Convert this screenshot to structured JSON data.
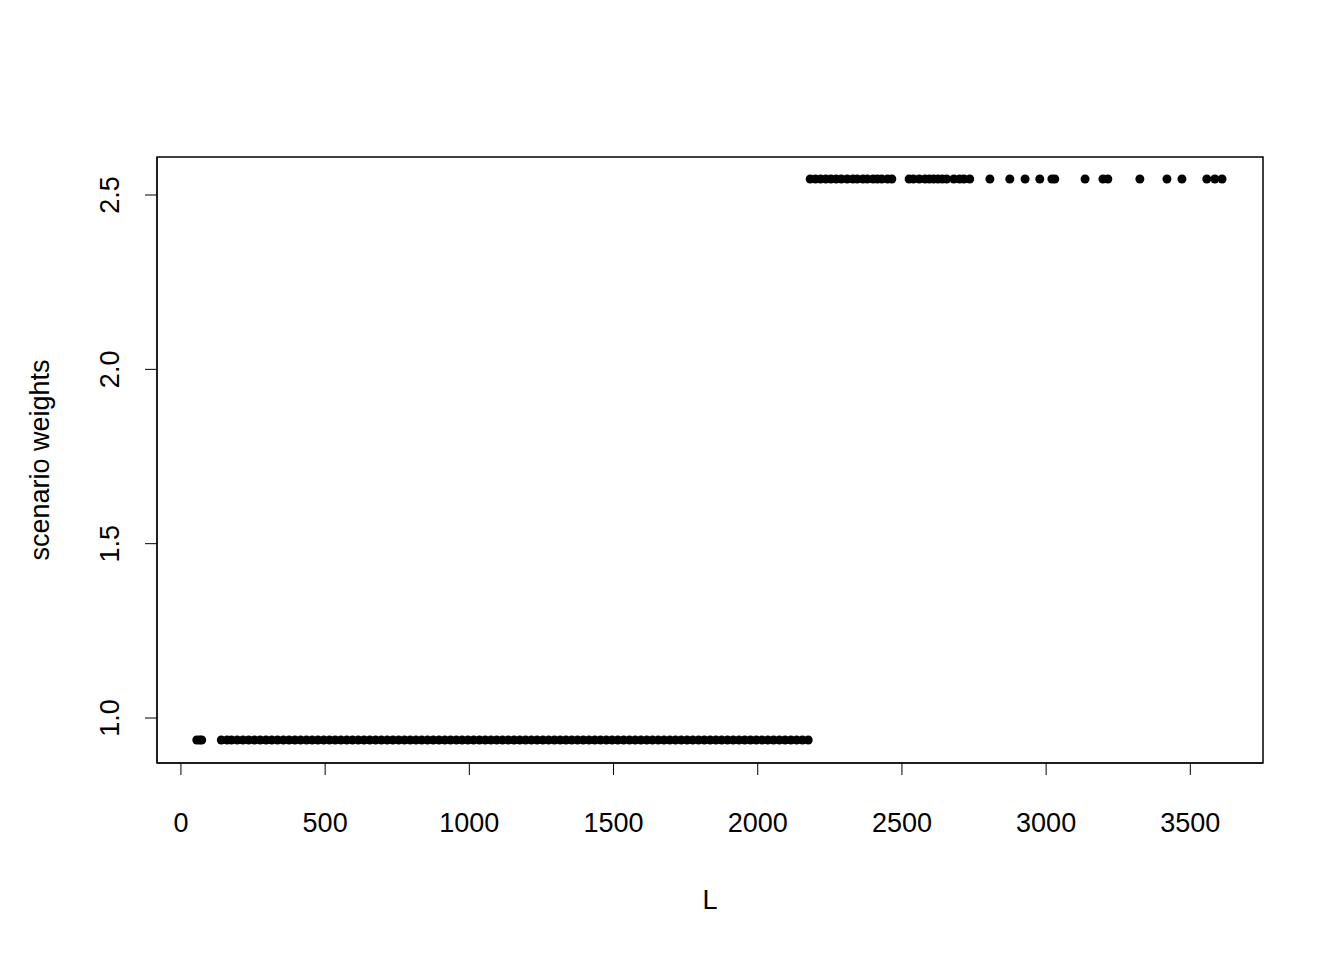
{
  "chart_data": {
    "type": "scatter",
    "xlabel": "L",
    "ylabel": "scenario weights",
    "color": "#000000",
    "marker": "circle",
    "x": [
      55,
      65,
      72,
      140,
      160,
      175,
      195,
      215,
      235,
      255,
      275,
      295,
      315,
      335,
      355,
      375,
      395,
      415,
      435,
      455,
      475,
      495,
      515,
      535,
      555,
      575,
      595,
      615,
      635,
      655,
      675,
      695,
      715,
      735,
      755,
      775,
      795,
      815,
      835,
      855,
      875,
      895,
      915,
      935,
      955,
      975,
      995,
      1015,
      1035,
      1055,
      1075,
      1095,
      1115,
      1135,
      1155,
      1175,
      1195,
      1215,
      1235,
      1255,
      1275,
      1295,
      1315,
      1335,
      1355,
      1375,
      1395,
      1415,
      1435,
      1455,
      1475,
      1495,
      1515,
      1535,
      1555,
      1575,
      1595,
      1615,
      1635,
      1655,
      1675,
      1695,
      1715,
      1735,
      1755,
      1775,
      1795,
      1815,
      1835,
      1855,
      1875,
      1895,
      1915,
      1935,
      1955,
      1975,
      1995,
      2015,
      2035,
      2055,
      2075,
      2095,
      2115,
      2135,
      2155,
      2175,
      2182,
      2200,
      2218,
      2236,
      2254,
      2272,
      2290,
      2310,
      2330,
      2345,
      2365,
      2380,
      2400,
      2415,
      2430,
      2450,
      2465,
      2525,
      2540,
      2560,
      2580,
      2595,
      2610,
      2625,
      2640,
      2655,
      2680,
      2700,
      2715,
      2735,
      2805,
      2874,
      2927,
      2978,
      3020,
      3030,
      3135,
      3197,
      3214,
      3325,
      3419,
      3471,
      3557,
      3585,
      3610
    ],
    "values": [
      0.937,
      0.937,
      0.937,
      0.937,
      0.937,
      0.937,
      0.937,
      0.937,
      0.937,
      0.937,
      0.937,
      0.937,
      0.937,
      0.937,
      0.937,
      0.937,
      0.937,
      0.937,
      0.937,
      0.937,
      0.937,
      0.937,
      0.937,
      0.937,
      0.937,
      0.937,
      0.937,
      0.937,
      0.937,
      0.937,
      0.937,
      0.937,
      0.937,
      0.937,
      0.937,
      0.937,
      0.937,
      0.937,
      0.937,
      0.937,
      0.937,
      0.937,
      0.937,
      0.937,
      0.937,
      0.937,
      0.937,
      0.937,
      0.937,
      0.937,
      0.937,
      0.937,
      0.937,
      0.937,
      0.937,
      0.937,
      0.937,
      0.937,
      0.937,
      0.937,
      0.937,
      0.937,
      0.937,
      0.937,
      0.937,
      0.937,
      0.937,
      0.937,
      0.937,
      0.937,
      0.937,
      0.937,
      0.937,
      0.937,
      0.937,
      0.937,
      0.937,
      0.937,
      0.937,
      0.937,
      0.937,
      0.937,
      0.937,
      0.937,
      0.937,
      0.937,
      0.937,
      0.937,
      0.937,
      0.937,
      0.937,
      0.937,
      0.937,
      0.937,
      0.937,
      0.937,
      0.937,
      0.937,
      0.937,
      0.937,
      0.937,
      0.937,
      0.937,
      0.937,
      0.937,
      0.937,
      2.546,
      2.546,
      2.546,
      2.546,
      2.546,
      2.546,
      2.546,
      2.546,
      2.546,
      2.546,
      2.546,
      2.546,
      2.546,
      2.546,
      2.546,
      2.546,
      2.546,
      2.546,
      2.546,
      2.546,
      2.546,
      2.546,
      2.546,
      2.546,
      2.546,
      2.546,
      2.546,
      2.546,
      2.546,
      2.546,
      2.546,
      2.546,
      2.546,
      2.546,
      2.546,
      2.546,
      2.546,
      2.546,
      2.546,
      2.546,
      2.546,
      2.546,
      2.546,
      2.546,
      2.546
    ],
    "xlim": [
      -83,
      3752
    ],
    "ylim": [
      0.871,
      2.609
    ],
    "xticks": [
      0,
      500,
      1000,
      1500,
      2000,
      2500,
      3000,
      3500
    ],
    "yticks": [
      {
        "value": 1,
        "label": "1.0"
      },
      {
        "value": 1.5,
        "label": "1.5"
      },
      {
        "value": 2,
        "label": "2.0"
      },
      {
        "value": 2.5,
        "label": "2.5"
      }
    ]
  }
}
